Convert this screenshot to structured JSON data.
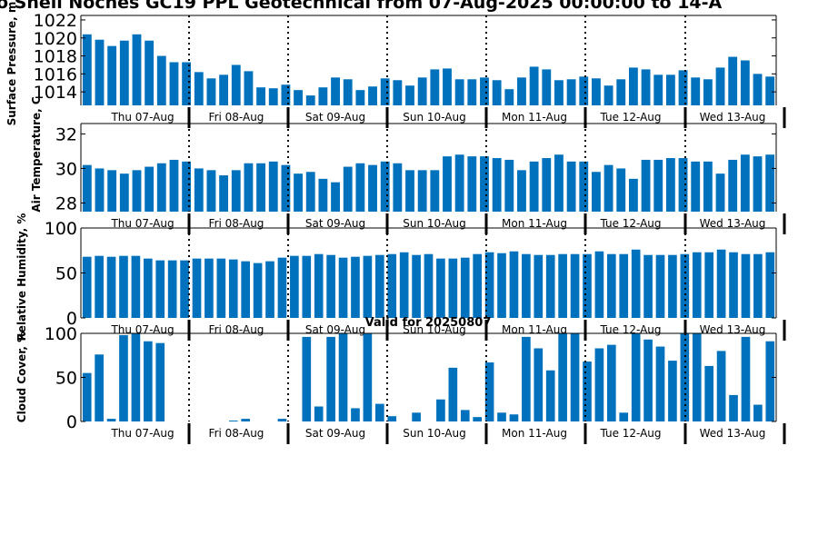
{
  "title": "o Shell Noches   GC19 PPL  Geotechnical from 07-Aug-2025 00:00:00 to 14-A",
  "valid_label": "Valid for 20250807",
  "day_labels": [
    "Thu 07-Aug",
    "Fri 08-Aug",
    "Sat 09-Aug",
    "Sun 10-Aug",
    "Mon 11-Aug",
    "Tue 12-Aug",
    "Wed 13-Aug"
  ],
  "colors": {
    "bar": "#0072bd",
    "axis": "#000000",
    "divider": "#000000"
  },
  "chart_data": [
    {
      "type": "bar",
      "ylabel": "Surface Pressure, m",
      "ylim": [
        1012.5,
        1022.5
      ],
      "yticks": [
        1014,
        1016,
        1018,
        1020,
        1022
      ],
      "values": [
        1020.4,
        1019.8,
        1019.1,
        1019.7,
        1020.4,
        1019.7,
        1018.0,
        1017.3,
        1017.3,
        1016.2,
        1015.5,
        1015.9,
        1017.0,
        1016.3,
        1014.5,
        1014.4,
        1014.8,
        1014.2,
        1013.6,
        1014.5,
        1015.6,
        1015.4,
        1014.2,
        1014.6,
        1015.5,
        1015.3,
        1014.7,
        1015.6,
        1016.5,
        1016.6,
        1015.4,
        1015.4,
        1015.6,
        1015.3,
        1014.3,
        1015.6,
        1016.8,
        1016.5,
        1015.3,
        1015.4,
        1015.7,
        1015.5,
        1014.7,
        1015.4,
        1016.7,
        1016.5,
        1015.9,
        1015.9,
        1016.4,
        1015.6,
        1015.4,
        1016.7,
        1017.9,
        1017.5,
        1016.0,
        1015.7
      ]
    },
    {
      "type": "bar",
      "ylabel": "Air Temperature, C",
      "ylim": [
        27.5,
        32.6
      ],
      "yticks": [
        28,
        30,
        32
      ],
      "values": [
        30.2,
        30.0,
        29.9,
        29.7,
        29.9,
        30.1,
        30.3,
        30.5,
        30.4,
        30.0,
        29.9,
        29.6,
        29.9,
        30.3,
        30.3,
        30.4,
        30.2,
        29.7,
        29.8,
        29.4,
        29.2,
        30.1,
        30.3,
        30.2,
        30.4,
        30.3,
        29.9,
        29.9,
        29.9,
        30.7,
        30.8,
        30.7,
        30.7,
        30.6,
        30.5,
        29.9,
        30.4,
        30.6,
        30.8,
        30.4,
        30.4,
        29.8,
        30.2,
        30.0,
        29.4,
        30.5,
        30.5,
        30.6,
        30.6,
        30.4,
        30.4,
        29.7,
        30.5,
        30.8,
        30.7,
        30.8
      ]
    },
    {
      "type": "bar",
      "ylabel": "Relative Humidity, %",
      "ylim": [
        0,
        100
      ],
      "yticks": [
        0,
        50,
        100
      ],
      "values": [
        68,
        69,
        68,
        69,
        69,
        66,
        64,
        64,
        64,
        66,
        66,
        66,
        65,
        63,
        61,
        63,
        67,
        69,
        69,
        71,
        70,
        67,
        68,
        69,
        70,
        71,
        73,
        70,
        71,
        66,
        66,
        67,
        71,
        73,
        72,
        74,
        71,
        70,
        70,
        71,
        71,
        71,
        74,
        71,
        71,
        76,
        70,
        70,
        70,
        71,
        73,
        73,
        76,
        73,
        71,
        71,
        73
      ]
    },
    {
      "type": "bar",
      "ylabel": "Cloud Cover, %",
      "ylim": [
        0,
        100
      ],
      "yticks": [
        0,
        50,
        100
      ],
      "values": [
        55,
        76,
        3,
        98,
        100,
        91,
        89,
        0,
        0,
        0,
        0,
        0,
        1,
        3,
        0,
        0,
        3,
        0,
        96,
        17,
        96,
        100,
        15,
        100,
        20,
        6,
        0,
        10,
        0,
        25,
        61,
        13,
        5,
        67,
        10,
        8,
        96,
        83,
        58,
        100,
        100,
        68,
        83,
        87,
        10,
        100,
        93,
        85,
        69,
        100,
        100,
        63,
        80,
        30,
        96,
        19,
        91
      ]
    }
  ]
}
